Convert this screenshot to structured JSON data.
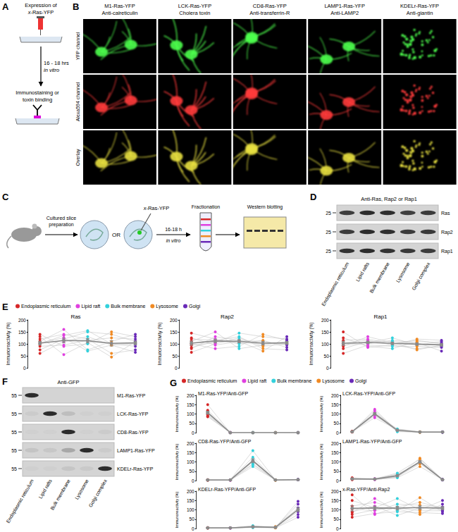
{
  "panels": {
    "A": {
      "label": "A",
      "expression": [
        "Expression of",
        "x-Ras-YFP"
      ],
      "time": "16 - 18 hrs",
      "condition": "in vitro",
      "assay": [
        "Immunostaining or",
        "toxin binding"
      ]
    },
    "B": {
      "label": "B",
      "columns": [
        {
          "construct": "M1-Ras-YFP",
          "stain": "Anti-calreticulin"
        },
        {
          "construct": "LCK-Ras-YFP",
          "stain": "Cholera toxin"
        },
        {
          "construct": "CD8-Ras-YFP",
          "stain": "Anti-transferrin-R"
        },
        {
          "construct": "LAMP1-Ras-YFP",
          "stain": "Anti-LAMP2"
        },
        {
          "construct": "KDELr-Ras-YFP",
          "stain": "Anti-giantin"
        }
      ],
      "rows": [
        "YFP channel",
        "Alexa594 channel",
        "Overlay"
      ]
    },
    "C": {
      "label": "C",
      "step1": [
        "Cultured slice",
        "preparation"
      ],
      "or": "OR",
      "construct": "x-Ras-YFP",
      "time": "16-18 h",
      "condition": "in vitro",
      "step2": "Fractionation",
      "step3": "Western blotting"
    },
    "D": {
      "label": "D",
      "title": "Anti-Ras, Rap2 or Rap1",
      "marker": 25,
      "rows": [
        "Ras",
        "Rap2",
        "Rap1"
      ],
      "fractions": [
        "Endoplasmic reticulum",
        "Lipid rafts",
        "Bulk membrane",
        "Lysosome",
        "Golgi complex"
      ]
    },
    "E": {
      "label": "E"
    },
    "F": {
      "label": "F",
      "title": "Anti-GFP",
      "marker": 55,
      "rows": [
        "M1-Ras-YFP",
        "LCK-Ras-YFP",
        "CD8-Ras-YFP",
        "LAMP1-Ras-YFP",
        "KDELr-Ras-YFP"
      ],
      "fractions": [
        "Endoplasmic reticulum",
        "Lipid rafts",
        "Bulk membrane",
        "Lysosome",
        "Golgi complex"
      ]
    },
    "G": {
      "label": "G"
    }
  },
  "chart_data": [
    {
      "type": "line",
      "marker": "circle",
      "title": "Ras",
      "ylabel": "Immunoreactivity (%)",
      "categories": [
        "Endoplasmic reticulum",
        "Lipid raft",
        "Bulk membrane",
        "Lysosome",
        "Golgi"
      ],
      "colors": [
        "#d62728",
        "#e040e0",
        "#33d1dc",
        "#f08a24",
        "#6a2ab8"
      ],
      "ylim": [
        0,
        200
      ],
      "yticks": [
        0,
        50,
        100,
        150,
        200
      ],
      "tick_labels": "y",
      "replicates": [
        [
          60,
          110,
          130,
          95,
          100
        ],
        [
          75,
          120,
          150,
          140,
          110
        ],
        [
          90,
          95,
          115,
          125,
          120
        ],
        [
          100,
          135,
          155,
          100,
          90
        ],
        [
          110,
          160,
          75,
          110,
          140
        ],
        [
          120,
          140,
          120,
          60,
          75
        ],
        [
          140,
          90,
          100,
          150,
          130
        ],
        [
          130,
          55,
          105,
          45,
          110
        ],
        [
          105,
          125,
          70,
          95,
          65
        ]
      ],
      "mean": [
        103,
        114,
        113,
        102,
        104
      ],
      "sem": [
        8,
        10,
        9,
        11,
        8
      ]
    },
    {
      "type": "line",
      "marker": "circle",
      "title": "Rap2",
      "ylabel": "Immunoreactivity (%)",
      "categories": [
        "Endoplasmic reticulum",
        "Lipid raft",
        "Bulk membrane",
        "Lysosome",
        "Golgi"
      ],
      "colors": [
        "#d62728",
        "#e040e0",
        "#33d1dc",
        "#f08a24",
        "#6a2ab8"
      ],
      "ylim": [
        0,
        200
      ],
      "yticks": [
        0,
        50,
        100,
        150,
        200
      ],
      "tick_labels": "y",
      "replicates": [
        [
          65,
          100,
          125,
          90,
          100
        ],
        [
          80,
          130,
          115,
          110,
          95
        ],
        [
          95,
          105,
          145,
          130,
          120
        ],
        [
          110,
          150,
          80,
          95,
          110
        ],
        [
          125,
          95,
          110,
          70,
          130
        ],
        [
          145,
          120,
          100,
          115,
          85
        ],
        [
          100,
          80,
          90,
          140,
          115
        ],
        [
          120,
          115,
          130,
          80,
          75
        ],
        [
          85,
          110,
          105,
          100,
          105
        ]
      ],
      "mean": [
        103,
        112,
        111,
        103,
        104
      ],
      "sem": [
        9,
        8,
        7,
        8,
        6
      ]
    },
    {
      "type": "line",
      "marker": "circle",
      "title": "Rap1",
      "ylabel": "Immunoreactivity (%)",
      "categories": [
        "Endoplasmic reticulum",
        "Lipid raft",
        "Bulk membrane",
        "Lysosome",
        "Golgi"
      ],
      "colors": [
        "#d62728",
        "#e040e0",
        "#33d1dc",
        "#f08a24",
        "#6a2ab8"
      ],
      "ylim": [
        0,
        200
      ],
      "yticks": [
        0,
        50,
        100,
        150,
        200
      ],
      "tick_labels": "y",
      "replicates": [
        [
          60,
          95,
          90,
          90,
          85
        ],
        [
          80,
          110,
          110,
          100,
          95
        ],
        [
          100,
          105,
          125,
          95,
          110
        ],
        [
          115,
          120,
          100,
          115,
          100
        ],
        [
          150,
          85,
          95,
          80,
          90
        ],
        [
          95,
          100,
          115,
          105,
          70
        ],
        [
          125,
          90,
          80,
          110,
          105
        ],
        [
          90,
          130,
          105,
          75,
          95
        ],
        [
          105,
          115,
          95,
          120,
          115
        ]
      ],
      "mean": [
        102,
        106,
        102,
        99,
        96
      ],
      "sem": [
        9,
        5,
        5,
        5,
        5
      ]
    },
    {
      "type": "line",
      "marker": "circle",
      "title": "M1-Ras-YFP/Anti-GFP",
      "ylabel": "Immunoreactivity (%)",
      "categories": [
        "Endoplasmic reticulum",
        "Lipid raft",
        "Bulk membrane",
        "Lysosome",
        "Golgi"
      ],
      "colors": [
        "#d62728",
        "#e040e0",
        "#33d1dc",
        "#f08a24",
        "#6a2ab8"
      ],
      "ylim": [
        0,
        200
      ],
      "yticks": [
        0,
        50,
        100,
        150,
        200
      ],
      "tick_labels": "y",
      "replicates": [
        [
          85,
          0,
          0,
          0,
          0
        ],
        [
          95,
          1,
          0,
          0,
          0
        ],
        [
          100,
          0,
          1,
          0,
          0
        ],
        [
          110,
          0,
          0,
          1,
          0
        ],
        [
          120,
          1,
          0,
          0,
          1
        ],
        [
          150,
          0,
          0,
          0,
          0
        ],
        [
          90,
          0,
          0,
          0,
          0
        ]
      ],
      "mean": [
        107,
        0,
        0,
        0,
        0
      ],
      "sem": [
        8,
        0,
        0,
        0,
        0
      ]
    },
    {
      "type": "line",
      "marker": "circle",
      "title": "LCK-Ras-YFP/Anti-GFP",
      "ylabel": "Immunoreactivity (%)",
      "categories": [
        "Endoplasmic reticulum",
        "Lipid raft",
        "Bulk membrane",
        "Lysosome",
        "Golgi"
      ],
      "colors": [
        "#d62728",
        "#e040e0",
        "#33d1dc",
        "#f08a24",
        "#6a2ab8"
      ],
      "ylim": [
        0,
        200
      ],
      "yticks": [
        0,
        50,
        100,
        150,
        200
      ],
      "tick_labels": "y",
      "replicates": [
        [
          5,
          80,
          15,
          3,
          3
        ],
        [
          8,
          95,
          10,
          2,
          4
        ],
        [
          3,
          105,
          20,
          4,
          2
        ],
        [
          6,
          115,
          12,
          3,
          3
        ],
        [
          4,
          125,
          8,
          2,
          5
        ],
        [
          7,
          90,
          18,
          5,
          2
        ],
        [
          5,
          100,
          5,
          3,
          4
        ]
      ],
      "mean": [
        5,
        101,
        13,
        3,
        3
      ],
      "sem": [
        1,
        6,
        2,
        0.5,
        0.5
      ]
    },
    {
      "type": "line",
      "marker": "circle",
      "title": "CD8-Ras-YFP/Anti-GFP",
      "ylabel": "Immunoreactivity (%)",
      "categories": [
        "Endoplasmic reticulum",
        "Lipid raft",
        "Bulk membrane",
        "Lysosome",
        "Golgi"
      ],
      "colors": [
        "#d62728",
        "#e040e0",
        "#33d1dc",
        "#f08a24",
        "#6a2ab8"
      ],
      "ylim": [
        0,
        200
      ],
      "yticks": [
        0,
        50,
        100,
        150,
        200
      ],
      "tick_labels": "y",
      "replicates": [
        [
          3,
          2,
          75,
          3,
          5
        ],
        [
          4,
          3,
          90,
          2,
          4
        ],
        [
          2,
          4,
          100,
          3,
          6
        ],
        [
          5,
          2,
          110,
          4,
          5
        ],
        [
          3,
          3,
          125,
          2,
          7
        ],
        [
          4,
          3,
          160,
          3,
          5
        ],
        [
          2,
          2,
          85,
          4,
          4
        ]
      ],
      "mean": [
        3,
        3,
        106,
        3,
        5
      ],
      "sem": [
        0.5,
        0.3,
        11,
        0.3,
        0.4
      ]
    },
    {
      "type": "line",
      "marker": "circle",
      "title": "LAMP1-Ras-YFP/Anti-GFP",
      "ylabel": "Immunoreactivity (%)",
      "categories": [
        "Endoplasmic reticulum",
        "Lipid raft",
        "Bulk membrane",
        "Lysosome",
        "Golgi"
      ],
      "colors": [
        "#d62728",
        "#e040e0",
        "#33d1dc",
        "#f08a24",
        "#6a2ab8"
      ],
      "ylim": [
        0,
        200
      ],
      "yticks": [
        0,
        50,
        100,
        150,
        200
      ],
      "tick_labels": "y",
      "replicates": [
        [
          5,
          6,
          15,
          75,
          5
        ],
        [
          10,
          8,
          20,
          90,
          6
        ],
        [
          8,
          10,
          30,
          100,
          4
        ],
        [
          12,
          7,
          25,
          105,
          5
        ],
        [
          15,
          9,
          40,
          115,
          7
        ],
        [
          6,
          5,
          18,
          120,
          3
        ],
        [
          9,
          8,
          35,
          95,
          6
        ]
      ],
      "mean": [
        9,
        8,
        26,
        100,
        5
      ],
      "sem": [
        1,
        1,
        3,
        6,
        0.5
      ]
    },
    {
      "type": "line",
      "marker": "circle",
      "title": "KDELr-Ras-YFP/Anti-GFP",
      "ylabel": "Immunoreactivity (%)",
      "categories": [
        "Endoplasmic reticulum",
        "Lipid raft",
        "Bulk membrane",
        "Lysosome",
        "Golgi"
      ],
      "colors": [
        "#d62728",
        "#e040e0",
        "#33d1dc",
        "#f08a24",
        "#6a2ab8"
      ],
      "ylim": [
        0,
        200
      ],
      "yticks": [
        0,
        50,
        100,
        150,
        200
      ],
      "tick_labels": "y",
      "replicates": [
        [
          3,
          3,
          5,
          3,
          60
        ],
        [
          4,
          2,
          8,
          5,
          75
        ],
        [
          2,
          4,
          12,
          8,
          90
        ],
        [
          5,
          3,
          15,
          4,
          100
        ],
        [
          3,
          2,
          10,
          10,
          110
        ],
        [
          4,
          3,
          6,
          6,
          130
        ],
        [
          3,
          4,
          9,
          5,
          145
        ]
      ],
      "mean": [
        3,
        3,
        9,
        6,
        101
      ],
      "sem": [
        0.4,
        0.3,
        1.3,
        1,
        11
      ]
    },
    {
      "type": "line",
      "marker": "circle",
      "title": "x-Ras-YFP/Anti-Rap2",
      "ylabel": "Immunoreactivity (%)",
      "categories": [
        "Endoplasmic reticulum",
        "Lipid raft",
        "Bulk membrane",
        "Lysosome",
        "Golgi"
      ],
      "colors": [
        "#d62728",
        "#e040e0",
        "#33d1dc",
        "#f08a24",
        "#6a2ab8"
      ],
      "ylim": [
        0,
        200
      ],
      "yticks": [
        0,
        50,
        100,
        150,
        200
      ],
      "tick_labels": "y",
      "replicates": [
        [
          60,
          80,
          90,
          85,
          80
        ],
        [
          75,
          100,
          110,
          95,
          95
        ],
        [
          90,
          120,
          70,
          110,
          100
        ],
        [
          105,
          95,
          130,
          125,
          115
        ],
        [
          120,
          140,
          105,
          75,
          130
        ],
        [
          150,
          110,
          160,
          100,
          150
        ],
        [
          180,
          75,
          115,
          140,
          110
        ],
        [
          85,
          160,
          95,
          165,
          90
        ]
      ],
      "mean": [
        108,
        110,
        109,
        112,
        109
      ],
      "sem": [
        14,
        10,
        10,
        10,
        8
      ]
    }
  ]
}
